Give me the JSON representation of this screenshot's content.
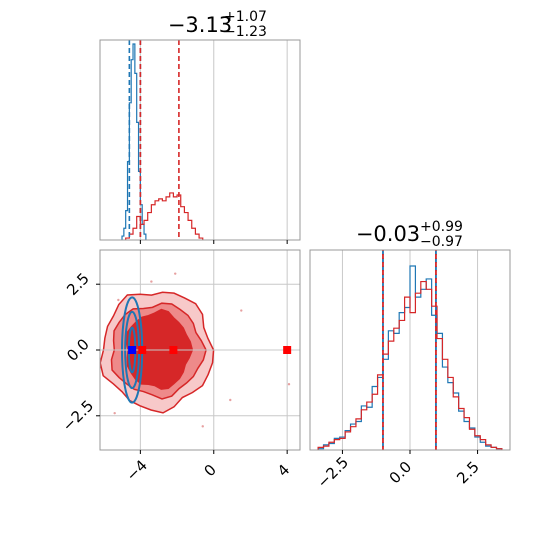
{
  "colors": {
    "red": "#d62728",
    "blue": "#1f77b4",
    "grid": "#c8c8c8",
    "spine": "#999999"
  },
  "chart_data": [
    {
      "type": "corner",
      "panel": "marginal-x",
      "title": {
        "main": "−3.13",
        "sup": "+1.07",
        "sub": "−1.23"
      },
      "xlim": [
        -6.2,
        4.7
      ],
      "grid_x": [
        -4,
        0,
        4
      ],
      "blue_quantiles": [
        -4.6,
        -4.0
      ],
      "red_quantiles": [
        -4.0,
        -1.9
      ],
      "red_hist": {
        "edges": [
          -4.8,
          -4.6,
          -4.4,
          -4.2,
          -4.0,
          -3.8,
          -3.6,
          -3.4,
          -3.2,
          -3.0,
          -2.8,
          -2.6,
          -2.4,
          -2.2,
          -2.0,
          -1.8,
          -1.6,
          -1.4,
          -1.2,
          -1.0,
          -0.8,
          -0.6
        ],
        "counts": [
          0.01,
          0.03,
          0.06,
          0.12,
          0.08,
          0.1,
          0.14,
          0.18,
          0.2,
          0.21,
          0.2,
          0.22,
          0.24,
          0.22,
          0.23,
          0.17,
          0.14,
          0.1,
          0.06,
          0.03,
          0.01
        ]
      },
      "blue_hist": {
        "edges": [
          -5.0,
          -4.9,
          -4.8,
          -4.7,
          -4.6,
          -4.5,
          -4.4,
          -4.3,
          -4.2,
          -4.1,
          -4.0,
          -3.9,
          -3.8,
          -3.7
        ],
        "counts": [
          0.02,
          0.06,
          0.15,
          0.4,
          0.7,
          0.92,
          1.0,
          0.85,
          0.6,
          0.35,
          0.18,
          0.08,
          0.03
        ]
      }
    },
    {
      "type": "corner",
      "panel": "marginal-y",
      "title": {
        "main": "−0.03",
        "sup": "+0.99",
        "sub": "−0.97"
      },
      "xlim": [
        -3.7,
        3.7
      ],
      "xticks": [
        -2.5,
        0.0,
        2.5
      ],
      "xtick_labels": [
        "−2.5",
        "0.0",
        "2.5"
      ],
      "quantiles": [
        -1.0,
        0.0,
        0.96
      ],
      "red_hist": {
        "edges": [
          -3.4,
          -3.2,
          -3.0,
          -2.8,
          -2.6,
          -2.4,
          -2.2,
          -2.0,
          -1.8,
          -1.6,
          -1.4,
          -1.2,
          -1.0,
          -0.8,
          -0.6,
          -0.4,
          -0.2,
          0.0,
          0.2,
          0.4,
          0.6,
          0.8,
          1.0,
          1.2,
          1.4,
          1.6,
          1.8,
          2.0,
          2.2,
          2.4,
          2.6,
          2.8,
          3.0,
          3.2,
          3.4
        ],
        "counts": [
          2,
          3,
          6,
          8,
          9,
          14,
          18,
          24,
          31,
          37,
          43,
          58,
          74,
          84,
          94,
          100,
          118,
          106,
          121,
          130,
          124,
          111,
          86,
          70,
          56,
          41,
          32,
          25,
          16,
          11,
          8,
          4,
          2,
          1
        ]
      },
      "blue_hist": {
        "edges": [
          -3.4,
          -3.2,
          -3.0,
          -2.8,
          -2.6,
          -2.4,
          -2.2,
          -2.0,
          -1.8,
          -1.6,
          -1.4,
          -1.2,
          -1.0,
          -0.8,
          -0.6,
          -0.4,
          -0.2,
          0.0,
          0.2,
          0.4,
          0.6,
          0.8,
          1.0,
          1.2,
          1.4,
          1.6,
          1.8,
          2.0,
          2.2,
          2.4,
          2.6,
          2.8,
          3.0,
          3.2,
          3.4
        ],
        "counts": [
          1,
          4,
          5,
          9,
          10,
          15,
          20,
          22,
          34,
          33,
          49,
          56,
          70,
          92,
          90,
          106,
          110,
          142,
          118,
          124,
          132,
          104,
          90,
          64,
          52,
          44,
          30,
          22,
          17,
          10,
          6,
          3,
          2,
          1
        ]
      }
    },
    {
      "type": "scatter",
      "panel": "joint",
      "xlim": [
        -6.2,
        4.7
      ],
      "ylim": [
        -3.8,
        3.8
      ],
      "xticks": [
        -4,
        0,
        4
      ],
      "xtick_labels": [
        "−4",
        "0",
        "4"
      ],
      "yticks": [
        -2.5,
        0.0,
        2.5
      ],
      "ytick_labels": [
        "−2.5",
        "0.0",
        "2.5"
      ],
      "red_contours": [
        {
          "cx": -3.1,
          "cy": 0.0,
          "rx": 3.0,
          "ry": 2.25,
          "fill": "#f7c9c9"
        },
        {
          "cx": -3.1,
          "cy": 0.0,
          "rx": 2.5,
          "ry": 1.75,
          "fill": "#ee8a8a"
        },
        {
          "cx": -3.05,
          "cy": 0.0,
          "rx": 1.75,
          "ry": 1.45,
          "fill": "#d62728"
        }
      ],
      "blue_contours": [
        {
          "cx": -4.45,
          "cy": 0.0,
          "rx": 0.55,
          "ry": 2.0
        },
        {
          "cx": -4.45,
          "cy": 0.0,
          "rx": 0.38,
          "ry": 1.45
        },
        {
          "cx": -4.45,
          "cy": 0.0,
          "rx": 0.18,
          "ry": 0.85
        }
      ],
      "markers": [
        {
          "x": -4.45,
          "y": 0.0,
          "color": "blue"
        },
        {
          "x": -3.9,
          "y": 0.0,
          "color": "red"
        },
        {
          "x": -2.2,
          "y": 0.0,
          "color": "red"
        },
        {
          "x": 4.0,
          "y": 0.0,
          "color": "red"
        }
      ],
      "outliers": [
        {
          "x": -3.4,
          "y": 2.6
        },
        {
          "x": 1.5,
          "y": 1.5
        },
        {
          "x": 4.1,
          "y": -1.3
        },
        {
          "x": -5.4,
          "y": -2.4
        },
        {
          "x": -0.6,
          "y": -2.9
        },
        {
          "x": -2.1,
          "y": 2.9
        },
        {
          "x": 0.9,
          "y": -1.9
        },
        {
          "x": -5.2,
          "y": 1.9
        }
      ]
    }
  ]
}
